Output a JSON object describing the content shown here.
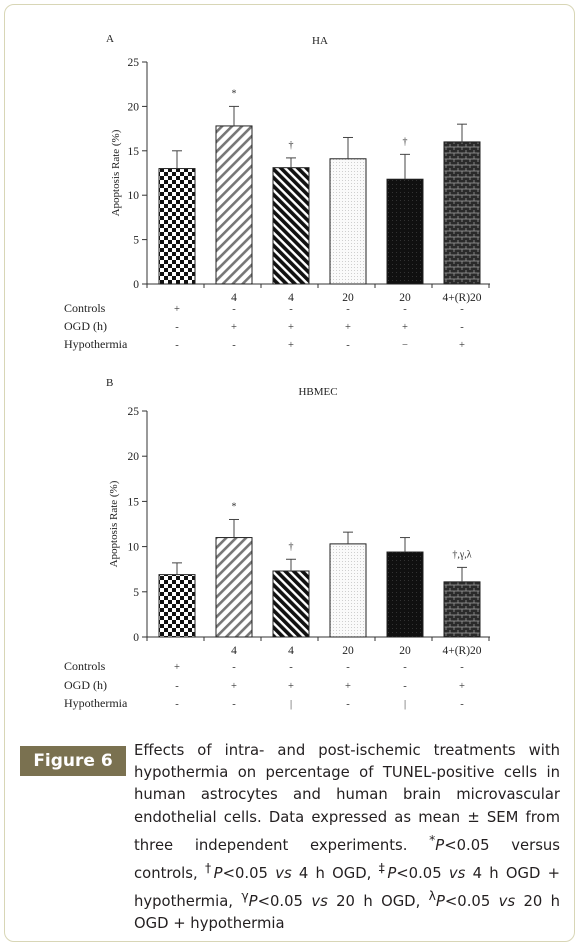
{
  "figure": {
    "label": "Figure 6",
    "caption_html": "Effects of intra- and post-ischemic treatments with hypothermia on percentage of TUNEL-positive cells in human astrocytes and human brain microvascular endothelial cells. Data expressed as mean ± SEM from three independent experiments. <sup>*</sup><i>P</i>&lt;0.05 versus controls, <sup>†</sup><i>P</i>&lt;0.05 <i>vs</i> 4 h OGD, <sup>‡</sup><i>P</i>&lt;0.05 <i>vs</i> 4 h OGD + hypothermia, <sup>γ</sup><i>P</i>&lt;0.05 <i>vs</i> 20 h OGD, <sup>λ</sup><i>P</i>&lt;0.05 <i>vs</i> 20 h OGD + hypothermia"
  },
  "row_labels": [
    "Controls",
    "OGD (h)",
    "Hypothermia"
  ],
  "chart_data": [
    {
      "panel": "A",
      "type": "bar",
      "title": "HA",
      "ylabel": "Apoptosis Rate (%)",
      "ylim": [
        0,
        25
      ],
      "yticks": [
        0,
        5,
        10,
        15,
        20,
        25
      ],
      "categories": [
        "",
        "4",
        "4",
        "20",
        "20",
        "4+(R)20"
      ],
      "values": [
        13.0,
        17.8,
        13.1,
        14.1,
        11.8,
        16.0
      ],
      "errors": [
        2.0,
        2.2,
        1.1,
        2.4,
        2.8,
        2.0
      ],
      "significance": [
        "",
        "*",
        "†",
        "",
        "†",
        ""
      ],
      "patterns": [
        "checker",
        "hatch-light",
        "hatch-dark",
        "dots",
        "solid-dark",
        "brick"
      ],
      "conditions": [
        [
          "+",
          "-",
          "-",
          "-",
          "-",
          "-"
        ],
        [
          "-",
          "+",
          "+",
          "+",
          "+",
          "-"
        ],
        [
          "-",
          "-",
          "+",
          "-",
          "−",
          "+"
        ]
      ]
    },
    {
      "panel": "B",
      "type": "bar",
      "title": "HBMEC",
      "ylabel": "Apoptosis Rate (%)",
      "ylim": [
        0,
        25
      ],
      "yticks": [
        0,
        5,
        10,
        15,
        20,
        25
      ],
      "categories": [
        "",
        "4",
        "4",
        "20",
        "20",
        "4+(R)20"
      ],
      "values": [
        6.9,
        11.0,
        7.3,
        10.3,
        9.4,
        6.1
      ],
      "errors": [
        1.3,
        2.0,
        1.3,
        1.3,
        1.6,
        1.6
      ],
      "significance": [
        "",
        "*",
        "†",
        "",
        "",
        "†,γ,λ"
      ],
      "patterns": [
        "checker",
        "hatch-light",
        "hatch-dark",
        "dots",
        "solid-dark",
        "brick"
      ],
      "conditions": [
        [
          "+",
          "-",
          "-",
          "-",
          "-",
          "-"
        ],
        [
          "-",
          "+",
          "+",
          "+",
          "-",
          "+"
        ],
        [
          "-",
          "-",
          "|",
          "-",
          "|",
          "-"
        ]
      ]
    }
  ]
}
